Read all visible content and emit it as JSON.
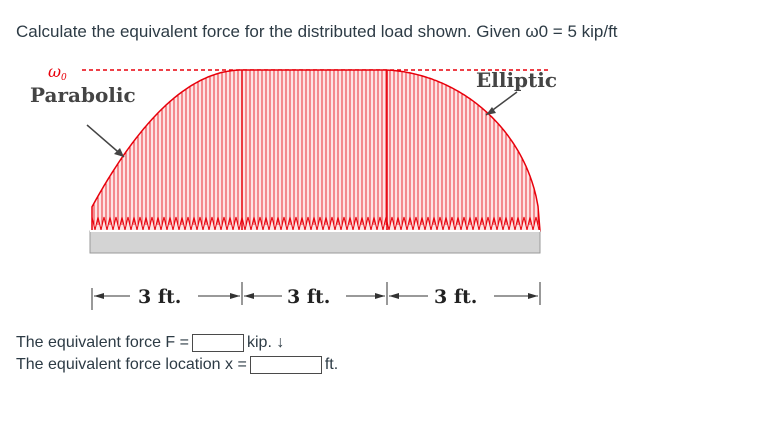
{
  "question": {
    "prompt": "Calculate the equivalent force for the distributed load shown. Given ω0 = 5 kip/ft"
  },
  "figure": {
    "w0_label": "ω",
    "w0_subscript": "0",
    "left_curve_label": "Parabolic",
    "right_curve_label": "Elliptic",
    "dims": [
      {
        "text": "3 ft."
      },
      {
        "text": "3 ft."
      },
      {
        "text": "3 ft."
      }
    ],
    "colors": {
      "load": "#e8000b",
      "beam": "#d4d4d4",
      "label": "#444444"
    }
  },
  "answers": {
    "force_label": "The equivalent force  F =",
    "force_value": "",
    "force_unit": "kip. ↓",
    "location_label": "The equivalent force location x =",
    "location_value": "",
    "location_unit": "ft."
  }
}
